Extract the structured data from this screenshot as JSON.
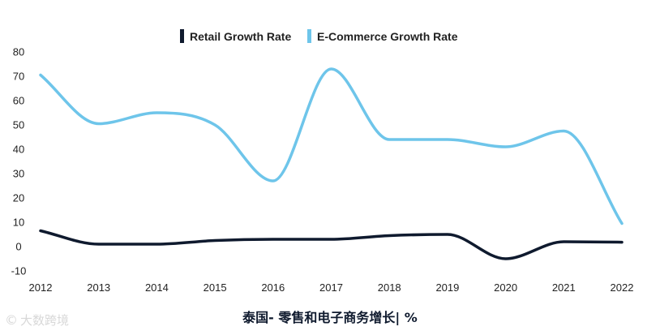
{
  "chart_data": {
    "type": "line",
    "title": "泰国- 零售和电子商务增长| %",
    "xlabel": "",
    "ylabel": "",
    "ylim": [
      -10,
      80
    ],
    "yticks": [
      -10,
      0,
      10,
      20,
      30,
      40,
      50,
      60,
      70,
      80
    ],
    "x": [
      "2012",
      "2013",
      "2014",
      "2015",
      "2016",
      "2017",
      "2018",
      "2019",
      "2020",
      "2021",
      "2022"
    ],
    "grid": false,
    "legend_placement": "top-center",
    "series": [
      {
        "name": "Retail Growth Rate",
        "color": "#0f1a2e",
        "values": [
          6.5,
          1.0,
          1.0,
          2.5,
          3.0,
          3.0,
          4.5,
          5.0,
          -5.0,
          2.0,
          1.8
        ]
      },
      {
        "name": "E-Commerce Growth Rate",
        "color": "#6ec5ea",
        "values": [
          70.5,
          50.5,
          55.0,
          50.0,
          27.0,
          73.0,
          44.0,
          44.0,
          41.0,
          47.5,
          9.5
        ]
      }
    ]
  },
  "watermark": {
    "icon": "©",
    "text": "大数跨境"
  }
}
